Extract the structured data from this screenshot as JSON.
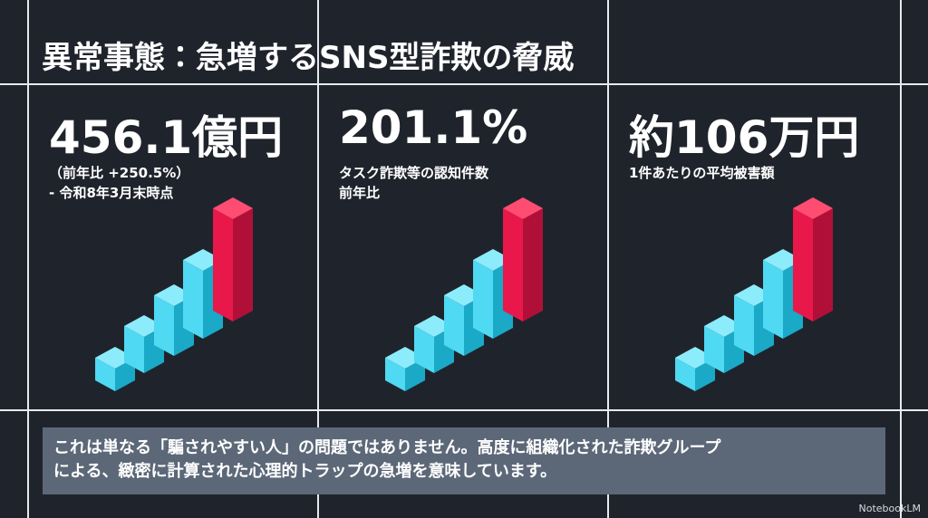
{
  "title": "異常事態：急増するSNS型詐欺の脅威",
  "cards": [
    {
      "headline": "456.1億円",
      "lines": [
        "（前年比 +250.5%）",
        "- 令和8年3月末時点"
      ]
    },
    {
      "headline": "201.1%",
      "lines": [
        "タスク詐欺等の認知件数",
        "前年比"
      ]
    },
    {
      "headline": "約106万円",
      "lines": [
        "1件あたりの平均被害額"
      ]
    }
  ],
  "message": {
    "lines": [
      "これは単なる「騙されやすい人」の問題ではありません。高度に組織化された詐欺グループ",
      "による、緻密に計算された心理的トラップの急増を意味しています。"
    ]
  },
  "watermark": "NotebookLM"
}
